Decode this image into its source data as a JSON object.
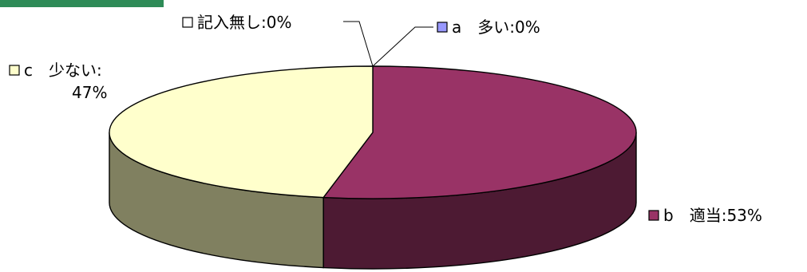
{
  "chart_data": {
    "type": "pie",
    "style": "3d",
    "title": "",
    "slices": [
      {
        "key": "a",
        "label": "a　多い",
        "value": 0,
        "value_text": "0%",
        "color": "#9999FF"
      },
      {
        "key": "b",
        "label": "b　適当",
        "value": 53,
        "value_text": "53%",
        "color": "#993366"
      },
      {
        "key": "c",
        "label": "c　少ない",
        "value": 47,
        "value_text": "47%",
        "color": "#FFFFCC"
      },
      {
        "key": "none",
        "label": "記入無し",
        "value": 0,
        "value_text": "0%",
        "color": "#FFFFFF"
      }
    ]
  },
  "colors": {
    "header_bar": "#2E8B57"
  }
}
